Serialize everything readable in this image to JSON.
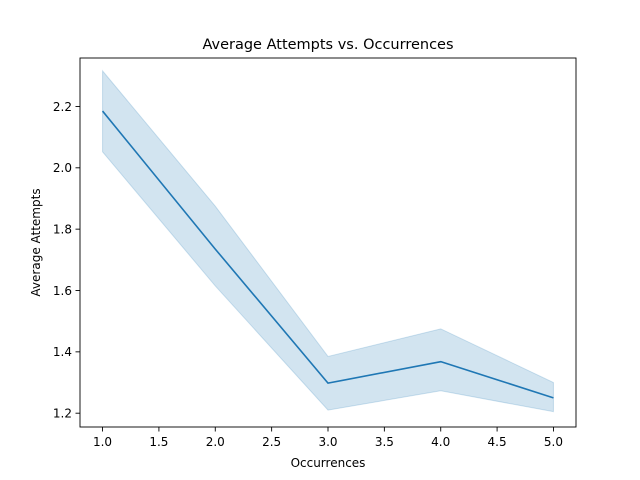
{
  "chart_data": {
    "type": "line",
    "title": "Average Attempts vs. Occurrences",
    "xlabel": "Occurrences",
    "ylabel": "Average Attempts",
    "xlim": [
      0.8,
      5.2
    ],
    "ylim": [
      1.155,
      2.358
    ],
    "xticks": [
      1.0,
      1.5,
      2.0,
      2.5,
      3.0,
      3.5,
      4.0,
      4.5,
      5.0
    ],
    "xtick_labels": [
      "1.0",
      "1.5",
      "2.0",
      "2.5",
      "3.0",
      "3.5",
      "4.0",
      "4.5",
      "5.0"
    ],
    "yticks": [
      1.2,
      1.4,
      1.6,
      1.8,
      2.0,
      2.2
    ],
    "ytick_labels": [
      "1.2",
      "1.4",
      "1.6",
      "1.8",
      "2.0",
      "2.2"
    ],
    "grid": false,
    "series": [
      {
        "x": [
          1,
          2,
          3,
          4,
          5
        ],
        "y": [
          2.185,
          1.735,
          1.298,
          1.368,
          1.25
        ],
        "ci_lower": [
          2.052,
          1.615,
          1.21,
          1.273,
          1.205
        ],
        "ci_upper": [
          2.316,
          1.875,
          1.385,
          1.475,
          1.3
        ],
        "color": "#1f77b4",
        "band_color": "#1f77b4"
      }
    ]
  }
}
